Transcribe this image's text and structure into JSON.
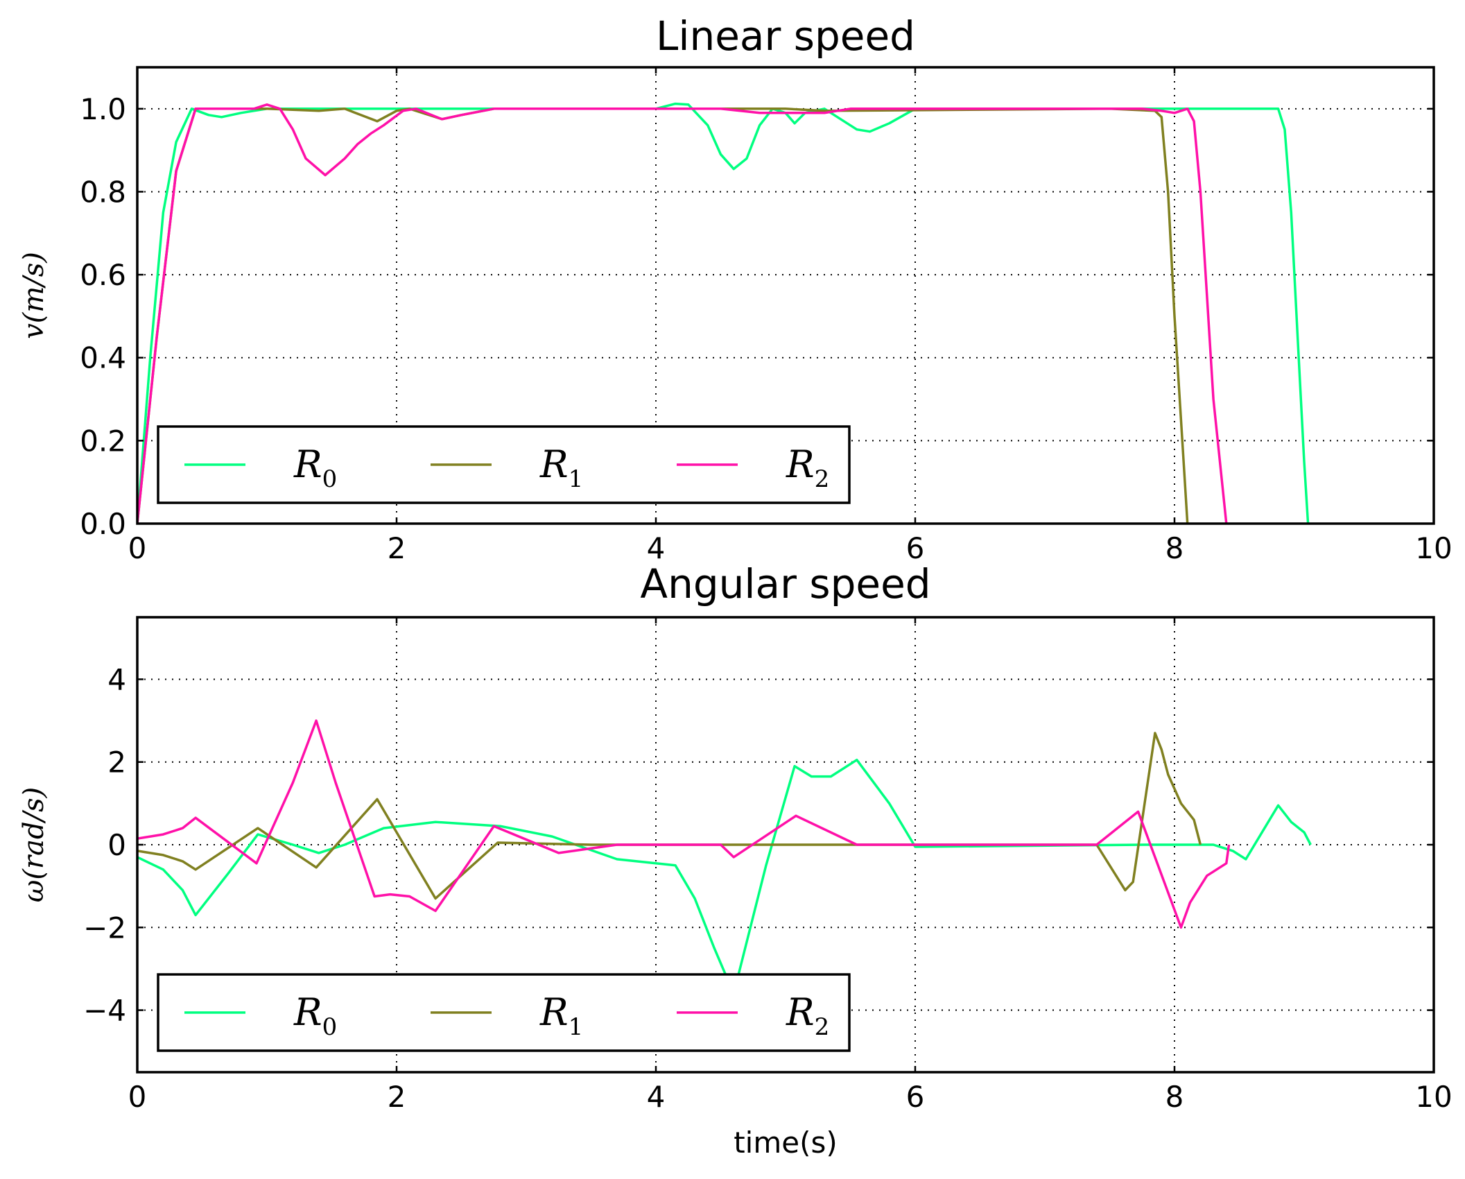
{
  "colors": {
    "R0": "#00ff80",
    "R1": "#808020",
    "R2": "#ff10a8"
  },
  "chart_data": [
    {
      "type": "line",
      "title": "Linear speed",
      "xlabel": "",
      "ylabel": "v(m/s)",
      "xlim": [
        0,
        10
      ],
      "ylim": [
        0,
        1.1
      ],
      "xticks": [
        0,
        2,
        4,
        6,
        8,
        10
      ],
      "xtick_labels": [
        "0",
        "2",
        "4",
        "6",
        "8",
        "10"
      ],
      "yticks": [
        0,
        0.2,
        0.4,
        0.6,
        0.8,
        1.0
      ],
      "ytick_labels": [
        "0.0",
        "0.2",
        "0.4",
        "0.6",
        "0.8",
        "1.0"
      ],
      "grid": true,
      "legend": "lower-left",
      "series": [
        {
          "name": "R0",
          "label_base": "R",
          "label_sub": "0",
          "color": "#00ff80",
          "points": [
            [
              0,
              0
            ],
            [
              0.1,
              0.4
            ],
            [
              0.2,
              0.75
            ],
            [
              0.3,
              0.92
            ],
            [
              0.42,
              1.0
            ],
            [
              0.55,
              0.985
            ],
            [
              0.65,
              0.98
            ],
            [
              0.8,
              0.99
            ],
            [
              1.0,
              1.0
            ],
            [
              4.0,
              1.0
            ],
            [
              4.15,
              1.012
            ],
            [
              4.25,
              1.01
            ],
            [
              4.4,
              0.96
            ],
            [
              4.5,
              0.89
            ],
            [
              4.6,
              0.855
            ],
            [
              4.7,
              0.88
            ],
            [
              4.8,
              0.96
            ],
            [
              4.9,
              1.0
            ],
            [
              5.0,
              0.99
            ],
            [
              5.07,
              0.965
            ],
            [
              5.15,
              0.99
            ],
            [
              5.3,
              1.0
            ],
            [
              5.4,
              0.98
            ],
            [
              5.55,
              0.95
            ],
            [
              5.65,
              0.945
            ],
            [
              5.8,
              0.965
            ],
            [
              6.0,
              1.0
            ],
            [
              8.8,
              1.0
            ],
            [
              8.85,
              0.95
            ],
            [
              8.9,
              0.75
            ],
            [
              8.95,
              0.45
            ],
            [
              9.0,
              0.15
            ],
            [
              9.03,
              0.0
            ]
          ]
        },
        {
          "name": "R1",
          "label_base": "R",
          "label_sub": "1",
          "color": "#808020",
          "points": [
            [
              0,
              0
            ],
            [
              0.15,
              0.45
            ],
            [
              0.3,
              0.85
            ],
            [
              0.45,
              1.0
            ],
            [
              1.0,
              1.0
            ],
            [
              1.4,
              0.995
            ],
            [
              1.6,
              1.0
            ],
            [
              1.85,
              0.97
            ],
            [
              2.0,
              0.995
            ],
            [
              2.1,
              1.0
            ],
            [
              2.35,
              0.975
            ],
            [
              2.5,
              0.985
            ],
            [
              2.75,
              1.0
            ],
            [
              5.0,
              1.0
            ],
            [
              5.3,
              0.995
            ],
            [
              7.5,
              1.0
            ],
            [
              7.85,
              0.995
            ],
            [
              7.9,
              0.98
            ],
            [
              7.95,
              0.8
            ],
            [
              8.0,
              0.5
            ],
            [
              8.05,
              0.25
            ],
            [
              8.1,
              0.0
            ]
          ]
        },
        {
          "name": "R2",
          "label_base": "R",
          "label_sub": "2",
          "color": "#ff10a8",
          "points": [
            [
              0,
              0
            ],
            [
              0.15,
              0.45
            ],
            [
              0.3,
              0.85
            ],
            [
              0.45,
              1.0
            ],
            [
              0.9,
              1.0
            ],
            [
              1.0,
              1.01
            ],
            [
              1.1,
              1.0
            ],
            [
              1.2,
              0.95
            ],
            [
              1.3,
              0.88
            ],
            [
              1.45,
              0.84
            ],
            [
              1.6,
              0.88
            ],
            [
              1.7,
              0.915
            ],
            [
              1.8,
              0.94
            ],
            [
              1.9,
              0.96
            ],
            [
              2.05,
              0.995
            ],
            [
              2.15,
              1.0
            ],
            [
              2.35,
              0.975
            ],
            [
              2.5,
              0.985
            ],
            [
              2.75,
              1.0
            ],
            [
              4.5,
              1.0
            ],
            [
              4.8,
              0.99
            ],
            [
              5.0,
              0.99
            ],
            [
              5.3,
              0.99
            ],
            [
              5.5,
              1.0
            ],
            [
              7.75,
              1.0
            ],
            [
              7.9,
              0.995
            ],
            [
              8.0,
              0.99
            ],
            [
              8.1,
              1.0
            ],
            [
              8.15,
              0.97
            ],
            [
              8.2,
              0.8
            ],
            [
              8.25,
              0.55
            ],
            [
              8.3,
              0.3
            ],
            [
              8.4,
              0.0
            ]
          ]
        }
      ]
    },
    {
      "type": "line",
      "title": "Angular speed",
      "xlabel": "time(s)",
      "ylabel": "ω(rad/s)",
      "xlim": [
        0,
        10
      ],
      "ylim": [
        -5.5,
        5.5
      ],
      "xticks": [
        0,
        2,
        4,
        6,
        8,
        10
      ],
      "xtick_labels": [
        "0",
        "2",
        "4",
        "6",
        "8",
        "10"
      ],
      "yticks": [
        -4,
        -2,
        0,
        2,
        4
      ],
      "ytick_labels": [
        "−4",
        "−2",
        "0",
        "2",
        "4"
      ],
      "grid": true,
      "legend": "lower-left",
      "series": [
        {
          "name": "R0",
          "label_base": "R",
          "label_sub": "0",
          "color": "#00ff80",
          "points": [
            [
              0,
              -0.3
            ],
            [
              0.2,
              -0.6
            ],
            [
              0.35,
              -1.1
            ],
            [
              0.45,
              -1.7
            ],
            [
              0.7,
              -0.7
            ],
            [
              0.93,
              0.25
            ],
            [
              1.2,
              0.0
            ],
            [
              1.4,
              -0.2
            ],
            [
              1.6,
              0.0
            ],
            [
              1.9,
              0.4
            ],
            [
              2.3,
              0.55
            ],
            [
              2.8,
              0.45
            ],
            [
              3.2,
              0.2
            ],
            [
              3.7,
              -0.35
            ],
            [
              4.15,
              -0.5
            ],
            [
              4.3,
              -1.3
            ],
            [
              4.45,
              -2.5
            ],
            [
              4.6,
              -3.6
            ],
            [
              4.85,
              -0.5
            ],
            [
              5.07,
              1.9
            ],
            [
              5.2,
              1.65
            ],
            [
              5.35,
              1.65
            ],
            [
              5.55,
              2.05
            ],
            [
              5.8,
              1.0
            ],
            [
              6.0,
              -0.05
            ],
            [
              7.8,
              0.0
            ],
            [
              8.3,
              0.0
            ],
            [
              8.45,
              -0.15
            ],
            [
              8.55,
              -0.35
            ],
            [
              8.8,
              0.95
            ],
            [
              8.9,
              0.55
            ],
            [
              9.0,
              0.3
            ],
            [
              9.05,
              0.0
            ]
          ]
        },
        {
          "name": "R1",
          "label_base": "R",
          "label_sub": "1",
          "color": "#808020",
          "points": [
            [
              0,
              -0.15
            ],
            [
              0.2,
              -0.25
            ],
            [
              0.35,
              -0.4
            ],
            [
              0.45,
              -0.6
            ],
            [
              0.93,
              0.4
            ],
            [
              1.38,
              -0.55
            ],
            [
              1.85,
              1.1
            ],
            [
              2.3,
              -1.3
            ],
            [
              2.78,
              0.05
            ],
            [
              3.5,
              0.0
            ],
            [
              7.4,
              0.0
            ],
            [
              7.62,
              -1.1
            ],
            [
              7.68,
              -0.9
            ],
            [
              7.85,
              2.7
            ],
            [
              7.9,
              2.3
            ],
            [
              7.95,
              1.7
            ],
            [
              8.05,
              1.0
            ],
            [
              8.15,
              0.6
            ],
            [
              8.2,
              0.0
            ]
          ]
        },
        {
          "name": "R2",
          "label_base": "R",
          "label_sub": "2",
          "color": "#ff10a8",
          "points": [
            [
              0,
              0.15
            ],
            [
              0.2,
              0.25
            ],
            [
              0.35,
              0.4
            ],
            [
              0.45,
              0.65
            ],
            [
              0.92,
              -0.45
            ],
            [
              1.2,
              1.5
            ],
            [
              1.38,
              3.0
            ],
            [
              1.53,
              1.5
            ],
            [
              1.83,
              -1.25
            ],
            [
              1.95,
              -1.2
            ],
            [
              2.1,
              -1.25
            ],
            [
              2.3,
              -1.6
            ],
            [
              2.75,
              0.45
            ],
            [
              3.25,
              -0.2
            ],
            [
              3.7,
              0.0
            ],
            [
              4.5,
              0.0
            ],
            [
              4.6,
              -0.3
            ],
            [
              5.08,
              0.7
            ],
            [
              5.55,
              0.0
            ],
            [
              7.4,
              0.0
            ],
            [
              7.72,
              0.8
            ],
            [
              8.05,
              -2.0
            ],
            [
              8.12,
              -1.4
            ],
            [
              8.25,
              -0.75
            ],
            [
              8.4,
              -0.45
            ],
            [
              8.42,
              0.0
            ]
          ]
        }
      ]
    }
  ]
}
